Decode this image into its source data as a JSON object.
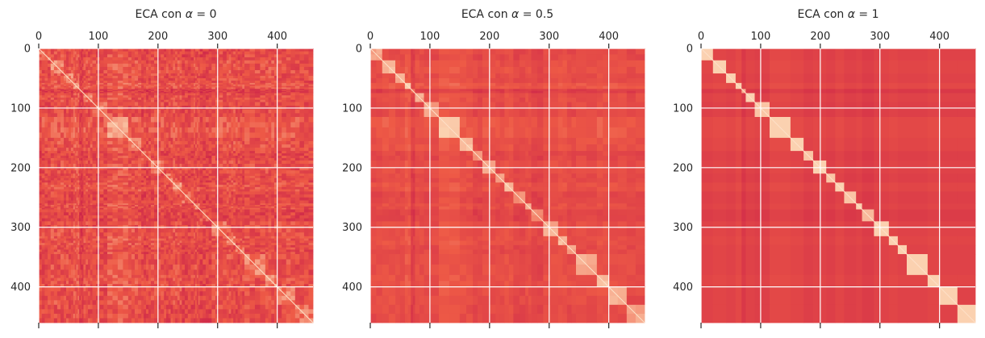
{
  "chart_data": [
    {
      "type": "heatmap",
      "title_prefix": "ECA con ",
      "title_symbol": "α",
      "title_suffix": " = 0",
      "xlim": [
        0,
        460
      ],
      "ylim": [
        460,
        0
      ],
      "xticks": [
        0,
        100,
        200,
        300,
        400
      ],
      "yticks": [
        0,
        100,
        200,
        300,
        400
      ],
      "grid": true,
      "blocks": [
        0,
        20,
        42,
        58,
        68,
        75,
        90,
        115,
        150,
        172,
        188,
        210,
        225,
        240,
        260,
        270,
        290,
        315,
        330,
        345,
        380,
        400,
        430,
        460
      ],
      "block_levels": [
        0.35,
        0.45,
        0.4,
        0.55,
        0.15,
        0.4,
        0.35,
        0.55,
        0.45,
        0.3,
        0.4,
        0.35,
        0.45,
        0.3,
        0.4,
        0.25,
        0.4,
        0.45,
        0.35,
        0.4,
        0.45,
        0.4,
        0.35
      ],
      "noise": 0.18,
      "diag_boost": 0.1
    },
    {
      "type": "heatmap",
      "title_prefix": "ECA con ",
      "title_symbol": "α",
      "title_suffix": " = 0.5",
      "xlim": [
        0,
        460
      ],
      "ylim": [
        460,
        0
      ],
      "xticks": [
        0,
        100,
        200,
        300,
        400
      ],
      "yticks": [
        0,
        100,
        200,
        300,
        400
      ],
      "grid": true,
      "blocks": [
        0,
        20,
        42,
        58,
        68,
        75,
        90,
        115,
        150,
        172,
        188,
        210,
        225,
        240,
        260,
        270,
        290,
        315,
        330,
        345,
        380,
        400,
        430,
        460
      ],
      "block_levels": [
        0.35,
        0.45,
        0.4,
        0.55,
        0.15,
        0.4,
        0.35,
        0.55,
        0.45,
        0.3,
        0.4,
        0.35,
        0.45,
        0.3,
        0.4,
        0.25,
        0.4,
        0.45,
        0.35,
        0.4,
        0.45,
        0.4,
        0.35
      ],
      "noise": 0.06,
      "diag_boost": 0.3
    },
    {
      "type": "heatmap",
      "title_prefix": "ECA con ",
      "title_symbol": "α",
      "title_suffix": " = 1",
      "xlim": [
        0,
        460
      ],
      "ylim": [
        460,
        0
      ],
      "xticks": [
        0,
        100,
        200,
        300,
        400
      ],
      "yticks": [
        0,
        100,
        200,
        300,
        400
      ],
      "grid": true,
      "blocks": [
        0,
        20,
        42,
        58,
        68,
        75,
        90,
        115,
        150,
        172,
        188,
        210,
        225,
        240,
        260,
        270,
        290,
        315,
        330,
        345,
        380,
        400,
        430,
        460
      ],
      "block_levels": [
        0.3,
        0.35,
        0.3,
        0.4,
        0.15,
        0.3,
        0.25,
        0.4,
        0.35,
        0.25,
        0.3,
        0.25,
        0.35,
        0.25,
        0.3,
        0.2,
        0.3,
        0.35,
        0.3,
        0.3,
        0.35,
        0.3,
        0.3
      ],
      "noise": 0.0,
      "diag_boost": 0.55
    }
  ],
  "colors": {
    "low": "#c81d4a",
    "mid": "#ee5a46",
    "high": "#fbd1b0",
    "grid": "#ffffff",
    "tick": "#262626",
    "background": "#ffffff"
  }
}
